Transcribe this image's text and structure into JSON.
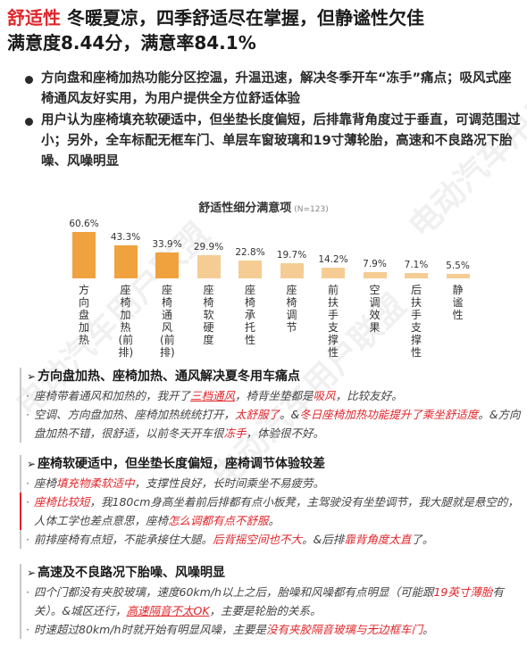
{
  "header": {
    "label": "舒适性",
    "title_rest": " 冬暖夏凉，四季舒适尽在掌握，但静谧性欠佳",
    "line2": "满意度8.44分，满意率84.1%"
  },
  "bullets": [
    "方向盘和座椅加热功能分区控温，升温迅速，解决冬季开车“冻手”痛点；吸风式座椅通风友好实用，为用户提供全方位舒适体验",
    "用户认为座椅填充软硬适中，但坐垫长度偏短，后排靠背角度过于垂直，可调范围过小；另外，全车标配无框车门、单层车窗玻璃和19寸薄轮胎，高速和不良路况下胎噪、风噪明显"
  ],
  "chart_data": {
    "type": "bar",
    "title": "舒适性细分满意项",
    "note": "(N=123)",
    "categories": [
      "方向盘加热",
      "座椅加热(前排)",
      "座椅通风(前排)",
      "座椅软硬度",
      "座椅承托性",
      "座椅调节",
      "前扶手支撑性",
      "空调效果",
      "后扶手支撑性",
      "静谧性"
    ],
    "values": [
      60.6,
      43.3,
      33.9,
      29.9,
      22.8,
      19.7,
      14.2,
      7.9,
      7.1,
      5.5
    ],
    "labels": [
      "60.6%",
      "43.3%",
      "33.9%",
      "29.9%",
      "22.8%",
      "19.7%",
      "14.2%",
      "7.9%",
      "7.1%",
      "5.5%"
    ],
    "colors": [
      "#f0a23e",
      "#f0a23e",
      "#f0a23e",
      "#f5cd94",
      "#f5cd94",
      "#f5cd94",
      "#f5cd94",
      "#f5cd94",
      "#f5cd94",
      "#f5cd94"
    ],
    "ylim": [
      0,
      70
    ]
  },
  "sections": [
    {
      "head": "方向盘加热、座椅加热、通风解决夏冬用车痛点",
      "quotes": [
        [
          "座椅带着通风和加热的，我开了",
          {
            "t": "三档通风",
            "c": "red-u"
          },
          "，椅背坐垫都是",
          {
            "t": "吸风",
            "c": "red"
          },
          "，比较友好。"
        ],
        [
          "空调、方向盘加热、座椅加热统统打开，",
          {
            "t": "太舒服了",
            "c": "red"
          },
          "。&",
          {
            "t": "冬日座椅加热功能提升了乘坐舒适度",
            "c": "red"
          },
          "。&方向盘加热不错，很舒适，以前冬天开车很",
          {
            "t": "冻手",
            "c": "red"
          },
          "，体验很不好。"
        ]
      ]
    },
    {
      "head": "座椅软硬适中，但坐垫长度偏短，座椅调节体验较差",
      "quotes": [
        [
          "座椅",
          {
            "t": "填充物柔软适中",
            "c": "red"
          },
          "，支撑性良好，长时间乘坐不易疲劳。"
        ],
        [
          {
            "t": "座椅比较短",
            "c": "red"
          },
          "，我180cm身高坐着前后排都有点小板凳，主驾驶没有坐垫调节，我大腿就是悬空的，人体工学也差点意思，座椅",
          {
            "t": "怎么调都有点不舒服",
            "c": "red"
          },
          "。"
        ],
        [
          "前排座椅有点短，不能承接住大腿。",
          {
            "t": "后背摇空间也不大",
            "c": "red"
          },
          "。&后排",
          {
            "t": "靠背角度太直",
            "c": "red"
          },
          "了。"
        ]
      ]
    },
    {
      "head": "高速及不良路况下胎噪、风噪明显",
      "quotes": [
        [
          "四个门都没有夹胶玻璃，速度60km/h以上之后，胎噪和风噪都有点明显（可能跟",
          {
            "t": "19英寸薄胎",
            "c": "red"
          },
          "有关）。&城区还行，",
          {
            "t": "高速隔音不太OK",
            "c": "red-u"
          },
          "，主要是轮胎的关系。"
        ],
        [
          "时速超过80km/h时就开始有明显风噪，主要是",
          {
            "t": "没有夹胶隔音玻璃与无边框车门",
            "c": "red"
          },
          "。"
        ]
      ]
    }
  ],
  "watermark": "电动汽车用户联盟"
}
